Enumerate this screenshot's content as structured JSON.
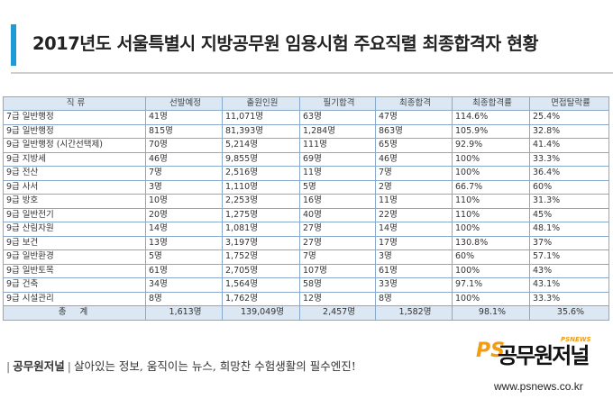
{
  "header": {
    "title": "2017년도 서울특별시 지방공무원 임용시험 주요직렬 최종합격자 현황"
  },
  "table": {
    "columns": [
      "직 류",
      "선발예정",
      "출원인원",
      "필기합격",
      "최종합격",
      "최종합격률",
      "면접탈락률"
    ],
    "rows": [
      [
        "7급 일반행정",
        "41명",
        "11,071명",
        "63명",
        "47명",
        "114.6%",
        "25.4%"
      ],
      [
        "9급 일반행정",
        "815명",
        "81,393명",
        "1,284명",
        "863명",
        "105.9%",
        "32.8%"
      ],
      [
        "9급 일반행정 (시간선택제)",
        "70명",
        "5,214명",
        "111명",
        "65명",
        "92.9%",
        "41.4%"
      ],
      [
        "9급 지방세",
        "46명",
        "9,855명",
        "69명",
        "46명",
        "100%",
        "33.3%"
      ],
      [
        "9급 전산",
        "7명",
        "2,516명",
        "11명",
        "7명",
        "100%",
        "36.4%"
      ],
      [
        "9급 사서",
        "3명",
        "1,110명",
        "5명",
        "2명",
        "66.7%",
        "60%"
      ],
      [
        "9급 방호",
        "10명",
        "2,253명",
        "16명",
        "11명",
        "110%",
        "31.3%"
      ],
      [
        "9급 일반전기",
        "20명",
        "1,275명",
        "40명",
        "22명",
        "110%",
        "45%"
      ],
      [
        "9급 산림자원",
        "14명",
        "1,081명",
        "27명",
        "14명",
        "100%",
        "48.1%"
      ],
      [
        "9급 보건",
        "13명",
        "3,197명",
        "27명",
        "17명",
        "130.8%",
        "37%"
      ],
      [
        "9급 일반환경",
        "5명",
        "1,752명",
        "7명",
        "3명",
        "60%",
        "57.1%"
      ],
      [
        "9급 일반토목",
        "61명",
        "2,705명",
        "107명",
        "61명",
        "100%",
        "43%"
      ],
      [
        "9급 건축",
        "34명",
        "1,564명",
        "58명",
        "33명",
        "97.1%",
        "43.1%"
      ],
      [
        "9급 시설관리",
        "8명",
        "1,762명",
        "12명",
        "8명",
        "100%",
        "33.3%"
      ]
    ],
    "total": [
      "총 계",
      "1,613명",
      "139,049명",
      "2,457명",
      "1,582명",
      "98.1%",
      "35.6%"
    ]
  },
  "footer": {
    "brand": "공무원저널",
    "slogan": "살아있는 정보, 움직이는 뉴스, 희망찬 수험생활의 필수엔진!",
    "logo_text": "공무원저널",
    "logo_ps": "PS",
    "logo_sub": "PSNEWS",
    "url": "www.psnews.co.kr"
  },
  "colors": {
    "accent": "#1e9bd7",
    "table_border": "#8aa9c9",
    "table_header_bg": "#dbe7f3",
    "logo_orange": "#f39c12"
  }
}
